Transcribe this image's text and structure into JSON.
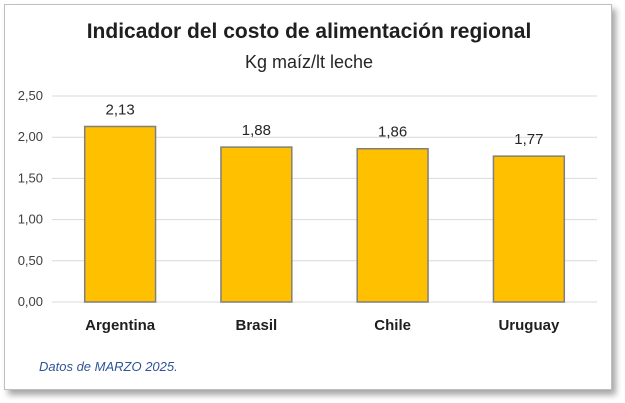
{
  "colors": {
    "bar_fill": "#ffc000",
    "bar_stroke": "#7f7f7f",
    "grid": "#d9d9d9",
    "note": "#2e5597"
  },
  "note": "Datos de MARZO 2025.",
  "chart_data": {
    "type": "bar",
    "title": "Indicador del costo de alimentación regional",
    "subtitle": "Kg maíz/lt leche",
    "categories": [
      "Argentina",
      "Brasil",
      "Chile",
      "Uruguay"
    ],
    "values": [
      2.13,
      1.88,
      1.86,
      1.77
    ],
    "value_labels": [
      "2,13",
      "1,88",
      "1,86",
      "1,77"
    ],
    "yticks": [
      "0,00",
      "0,50",
      "1,00",
      "1,50",
      "2,00",
      "2,50"
    ],
    "ytick_values": [
      0,
      0.5,
      1.0,
      1.5,
      2.0,
      2.5
    ],
    "ylim": [
      0,
      2.5
    ],
    "grid": true,
    "legend": "none"
  }
}
